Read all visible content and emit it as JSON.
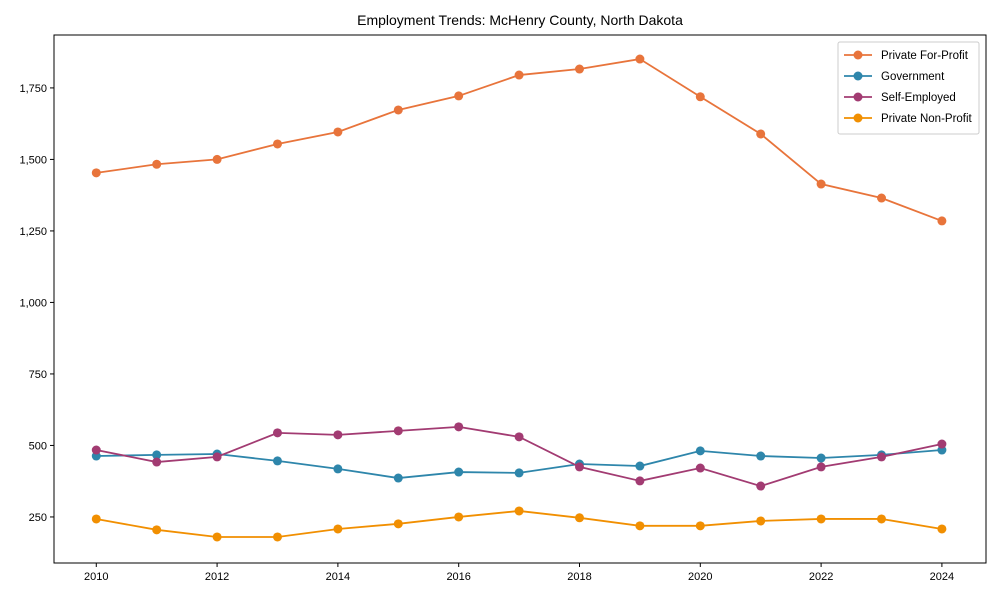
{
  "chart_data": {
    "type": "line",
    "title": "Employment Trends: McHenry County, North Dakota",
    "xlabel": "",
    "ylabel": "",
    "x": [
      2010,
      2011,
      2012,
      2013,
      2014,
      2015,
      2016,
      2017,
      2018,
      2019,
      2020,
      2021,
      2022,
      2023,
      2024
    ],
    "xlim": [
      2009.3,
      2024.73
    ],
    "ylim": [
      89,
      1935
    ],
    "xticks": [
      2010,
      2012,
      2014,
      2016,
      2018,
      2020,
      2022,
      2024
    ],
    "xtick_labels": [
      "2010",
      "2012",
      "2014",
      "2016",
      "2018",
      "2020",
      "2022",
      "2024"
    ],
    "yticks": [
      250,
      500,
      750,
      1000,
      1250,
      1500,
      1750
    ],
    "ytick_labels": [
      "250",
      "500",
      "750",
      "1,000",
      "1,250",
      "1,500",
      "1,750"
    ],
    "grid": false,
    "legend_position": "top-right",
    "series": [
      {
        "name": "Private For-Profit",
        "color": "#E8743B",
        "values": [
          1453,
          1483,
          1500,
          1554,
          1596,
          1673,
          1722,
          1795,
          1816,
          1851,
          1719,
          1589,
          1414,
          1365,
          1285
        ]
      },
      {
        "name": "Government",
        "color": "#2E86AB",
        "values": [
          463,
          467,
          470,
          446,
          418,
          386,
          407,
          404,
          435,
          428,
          481,
          463,
          456,
          467,
          484
        ]
      },
      {
        "name": "Self-Employed",
        "color": "#A23B72",
        "values": [
          484,
          442,
          460,
          544,
          537,
          551,
          565,
          530,
          425,
          376,
          421,
          358,
          425,
          460,
          505
        ]
      },
      {
        "name": "Private Non-Profit",
        "color": "#F18F01",
        "values": [
          243,
          205,
          180,
          180,
          208,
          226,
          250,
          271,
          247,
          219,
          219,
          236,
          243,
          243,
          208
        ]
      }
    ]
  }
}
